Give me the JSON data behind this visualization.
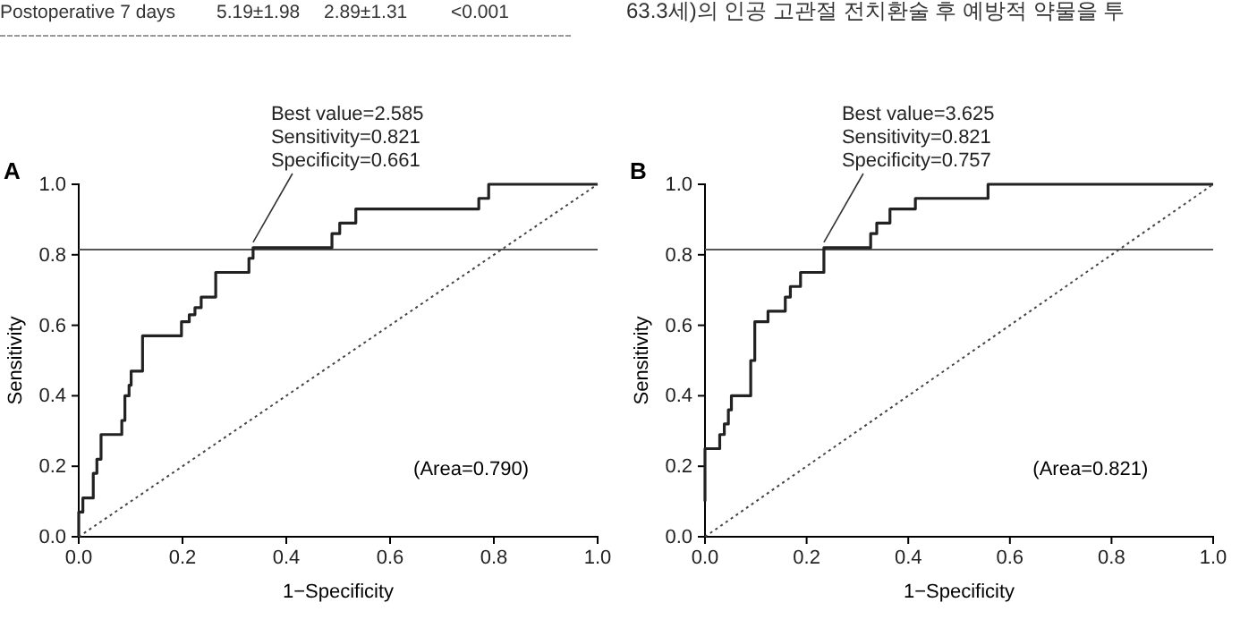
{
  "chart_data": [
    {
      "type": "other",
      "annotations": [
        "Postoperative 7 days",
        "5.19±1.98",
        "2.89±1.31",
        "<0.001",
        "63.3세)의 인공 고관절 전치환술 후 예방적 약물을 투"
      ]
    },
    {
      "type": "step",
      "xlabel": "1−Specificity",
      "ylabel": "Sensitivity",
      "xlim": [
        0,
        1
      ],
      "ylim": [
        0,
        1
      ],
      "xticks": [
        {
          "value": 0,
          "label": "0.0"
        },
        {
          "value": 0.2,
          "label": "0.2"
        },
        {
          "value": 0.4,
          "label": "0.4"
        },
        {
          "value": 0.6,
          "label": "0.6"
        },
        {
          "value": 0.8,
          "label": "0.8"
        },
        {
          "value": 1,
          "label": "1.0"
        }
      ],
      "yticks": [
        {
          "value": 0,
          "label": "0.0"
        },
        {
          "value": 0.2,
          "label": "0.2"
        },
        {
          "value": 0.4,
          "label": "0.4"
        },
        {
          "value": 0.6,
          "label": "0.6"
        },
        {
          "value": 0.8,
          "label": "0.8"
        },
        {
          "value": 1,
          "label": "1.0"
        }
      ],
      "grid": false,
      "marker": "none",
      "series": [
        {
          "type": "step",
          "color": "#222222",
          "line_style": "solid",
          "x": [
            0,
            0,
            0.008,
            0.028,
            0.035,
            0.043,
            0.083,
            0.089,
            0.097,
            0.101,
            0.123,
            0.198,
            0.213,
            0.224,
            0.236,
            0.264,
            0.328,
            0.336,
            0.488,
            0.503,
            0.534,
            0.771,
            0.79,
            1.0
          ],
          "values": [
            0,
            0.07,
            0.11,
            0.18,
            0.22,
            0.29,
            0.33,
            0.4,
            0.43,
            0.47,
            0.57,
            0.61,
            0.63,
            0.65,
            0.68,
            0.75,
            0.79,
            0.82,
            0.86,
            0.89,
            0.93,
            0.96,
            1.0,
            1.0
          ]
        },
        {
          "type": "line",
          "color": "#444444",
          "line_style": "dotted",
          "x": [
            0,
            1
          ],
          "values": [
            0,
            1
          ]
        }
      ],
      "ref_lines": [
        {
          "axis": "y",
          "value": 0.815,
          "color": "#555555"
        }
      ],
      "annotations": [
        "A",
        {
          "text": "Best value=2.585\nSensitivity=0.821\nSpecificity=0.661",
          "x": 0.336,
          "y": 0.82
        },
        "(Area=0.790)"
      ]
    },
    {
      "type": "step",
      "xlabel": "1−Specificity",
      "ylabel": "Sensitivity",
      "xlim": [
        0,
        1
      ],
      "ylim": [
        0,
        1
      ],
      "xticks": [
        {
          "value": 0,
          "label": "0.0"
        },
        {
          "value": 0.2,
          "label": "0.2"
        },
        {
          "value": 0.4,
          "label": "0.4"
        },
        {
          "value": 0.6,
          "label": "0.6"
        },
        {
          "value": 0.8,
          "label": "0.8"
        },
        {
          "value": 1,
          "label": "1.0"
        }
      ],
      "yticks": [
        {
          "value": 0,
          "label": "0.0"
        },
        {
          "value": 0.2,
          "label": "0.2"
        },
        {
          "value": 0.4,
          "label": "0.4"
        },
        {
          "value": 0.6,
          "label": "0.6"
        },
        {
          "value": 0.8,
          "label": "0.8"
        },
        {
          "value": 1,
          "label": "1.0"
        }
      ],
      "grid": false,
      "marker": "none",
      "series": [
        {
          "type": "step",
          "color": "#222222",
          "line_style": "solid",
          "x": [
            0,
            0,
            0.029,
            0.038,
            0.046,
            0.052,
            0.09,
            0.098,
            0.124,
            0.158,
            0.168,
            0.188,
            0.234,
            0.326,
            0.338,
            0.364,
            0.414,
            0.557,
            1.0
          ],
          "values": [
            0.1,
            0.25,
            0.29,
            0.32,
            0.36,
            0.4,
            0.5,
            0.61,
            0.64,
            0.68,
            0.71,
            0.75,
            0.82,
            0.86,
            0.89,
            0.93,
            0.96,
            1.0,
            1.0
          ]
        },
        {
          "type": "line",
          "color": "#444444",
          "line_style": "dotted",
          "x": [
            0,
            1
          ],
          "values": [
            0,
            1
          ]
        }
      ],
      "ref_lines": [
        {
          "axis": "y",
          "value": 0.815,
          "color": "#555555"
        }
      ],
      "annotations": [
        "B",
        {
          "text": "Best value=3.625\nSensitivity=0.821\nSpecificity=0.757",
          "x": 0.234,
          "y": 0.82
        },
        "(Area=0.821)"
      ]
    }
  ]
}
